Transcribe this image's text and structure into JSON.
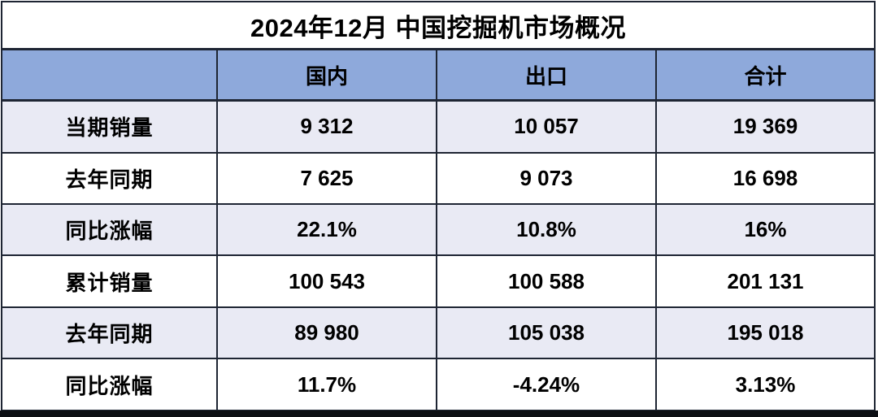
{
  "title": "2024年12月 中国挖掘机市场概况",
  "table": {
    "columns": [
      "",
      "国内",
      "出口",
      "合计"
    ],
    "rows": [
      {
        "label": "当期销量",
        "values": [
          "9 312",
          "10 057",
          "19 369"
        ]
      },
      {
        "label": "去年同期",
        "values": [
          "7 625",
          "9 073",
          "16 698"
        ]
      },
      {
        "label": "同比涨幅",
        "values": [
          "22.1%",
          "10.8%",
          "16%"
        ]
      },
      {
        "label": "累计销量",
        "values": [
          "100 543",
          "100 588",
          "201 131"
        ]
      },
      {
        "label": "去年同期",
        "values": [
          "89 980",
          "105 038",
          "195 018"
        ]
      },
      {
        "label": "同比涨幅",
        "values": [
          "11.7%",
          "-4.24%",
          "3.13%"
        ]
      }
    ]
  },
  "colors": {
    "header_background": "#8EA9DB",
    "alt_row_background": "#E9EAF4",
    "border": "#1e2533",
    "text": "#000000"
  },
  "chart_data": {
    "type": "table",
    "title": "2024年12月 中国挖掘机市场概况",
    "columns": [
      "国内",
      "出口",
      "合计"
    ],
    "row_labels": [
      "当期销量",
      "去年同期",
      "同比涨幅",
      "累计销量",
      "去年同期",
      "同比涨幅"
    ],
    "rows": [
      [
        "9 312",
        "10 057",
        "19 369"
      ],
      [
        "7 625",
        "9 073",
        "16 698"
      ],
      [
        "22.1%",
        "10.8%",
        "16%"
      ],
      [
        "100 543",
        "100 588",
        "201 131"
      ],
      [
        "89 980",
        "105 038",
        "195 018"
      ],
      [
        "11.7%",
        "-4.24%",
        "3.13%"
      ]
    ]
  }
}
